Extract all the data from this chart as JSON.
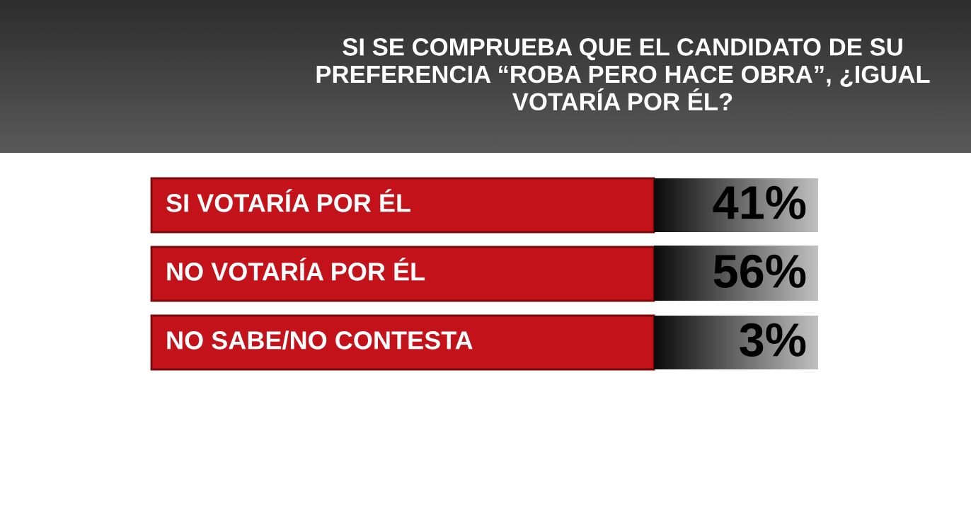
{
  "chart_data": {
    "type": "other",
    "title": "SI SE COMPRUEBA QUE EL CANDIDATO DE SU PREFERENCIA “ROBA PERO HACE OBRA”, ¿IGUAL VOTARÍA POR ÉL?",
    "categories": [
      "SI VOTARÍA POR ÉL",
      "NO VOTARÍA POR ÉL",
      "NO SABE/NO CONTESTA"
    ],
    "values": [
      41,
      56,
      3
    ],
    "value_labels": [
      "41%",
      "56%",
      "3%"
    ]
  }
}
